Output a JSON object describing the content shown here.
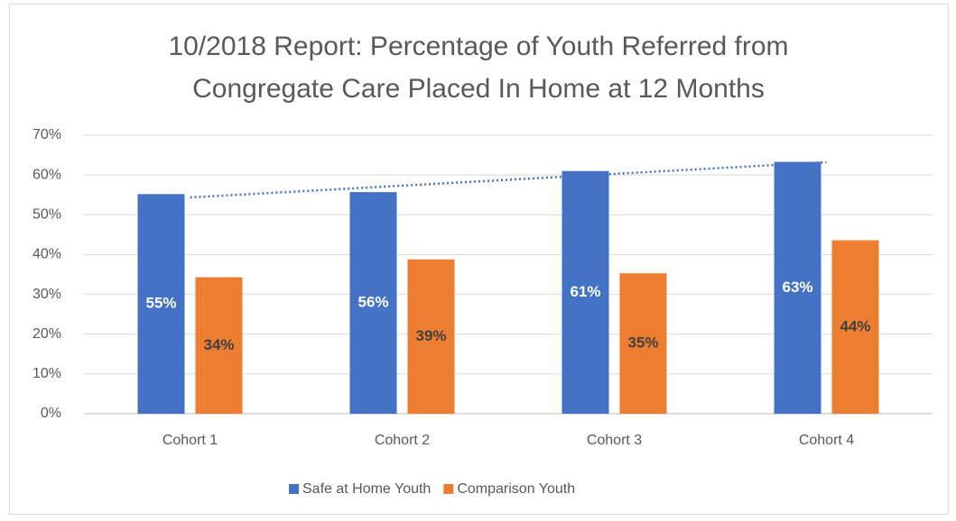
{
  "chart_data": {
    "type": "bar",
    "title": "10/2018 Report: Percentage of Youth Referred from Congregate Care Placed In Home at 12 Months",
    "categories": [
      "Cohort 1",
      "Cohort 2",
      "Cohort 3",
      "Cohort 4"
    ],
    "series": [
      {
        "name": "Safe at Home Youth",
        "color": "#4472c4",
        "values": [
          55.2,
          55.7,
          61,
          63.3
        ],
        "value_labels": [
          "55%",
          "56%",
          "61%",
          "63%"
        ],
        "trendline": "linear"
      },
      {
        "name": "Comparison Youth",
        "color": "#ed7d31",
        "values": [
          34.3,
          38.8,
          35.3,
          43.6
        ],
        "value_labels": [
          "34%",
          "39%",
          "35%",
          "44%"
        ]
      }
    ],
    "ylim": [
      0,
      70
    ],
    "yticks": [
      {
        "value": 0,
        "label": "0%"
      },
      {
        "value": 10,
        "label": "10%"
      },
      {
        "value": 20,
        "label": "20%"
      },
      {
        "value": 30,
        "label": "30%"
      },
      {
        "value": 40,
        "label": "40%"
      },
      {
        "value": 50,
        "label": "50%"
      },
      {
        "value": 60,
        "label": "60%"
      },
      {
        "value": 70,
        "label": "70%"
      }
    ],
    "grid": true,
    "legend": "bottom"
  }
}
